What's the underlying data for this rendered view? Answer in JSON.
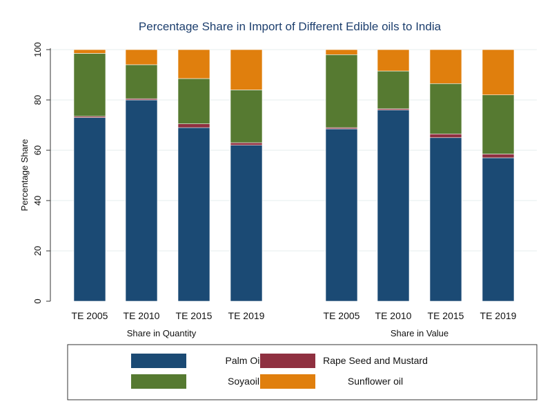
{
  "chart_data": {
    "type": "bar",
    "stacked": true,
    "title": "Percentage Share in Import of Different Edible oils to India",
    "xlabel": "",
    "ylabel": "Percentage Share",
    "ylim": [
      0,
      100
    ],
    "yticks": [
      0,
      20,
      40,
      60,
      80,
      100
    ],
    "grid": true,
    "legend_position": "bottom",
    "groups": [
      {
        "label": "Share in Quantity",
        "categories": [
          "TE 2005",
          "TE 2010",
          "TE 2015",
          "TE 2019"
        ],
        "series": [
          {
            "name": "Palm Oil",
            "values": [
              73,
              80,
              69,
              62
            ]
          },
          {
            "name": "Rape Seed and Mustard",
            "values": [
              0.5,
              0.5,
              1.5,
              1
            ]
          },
          {
            "name": "Soyaoil",
            "values": [
              25,
              13.5,
              18,
              21
            ]
          },
          {
            "name": "Sunflower oil",
            "values": [
              1.5,
              6,
              11.5,
              16
            ]
          }
        ]
      },
      {
        "label": "Share in Value",
        "categories": [
          "TE 2005",
          "TE 2010",
          "TE 2015",
          "TE 2019"
        ],
        "series": [
          {
            "name": "Palm Oil",
            "values": [
              68.5,
              76,
              65,
              57
            ]
          },
          {
            "name": "Rape Seed and Mustard",
            "values": [
              0.5,
              0.5,
              1.5,
              1.5
            ]
          },
          {
            "name": "Soyaoil",
            "values": [
              29,
              15,
              20,
              23.5
            ]
          },
          {
            "name": "Sunflower oil",
            "values": [
              2,
              8.5,
              13.5,
              18
            ]
          }
        ]
      }
    ],
    "colors": {
      "Palm Oil": "#1b4a74",
      "Rape Seed and Mustard": "#8f3040",
      "Soyaoil": "#567a31",
      "Sunflower oil": "#e07f0d"
    },
    "legend": {
      "entries": [
        "Palm Oil",
        "Rape Seed and Mustard",
        "Soyaoil",
        "Sunflower oil"
      ]
    }
  }
}
